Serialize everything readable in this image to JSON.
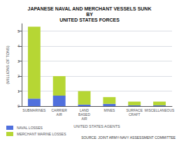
{
  "chart_data": {
    "type": "bar",
    "title": "JAPANESE NAVAL AND MERCHANT VESSELS SUNK\nBY\nUNITED STATES FORCES",
    "xlabel": "UNITED STATES AGENTS",
    "ylabel": "(MILLIONS OF TONS)",
    "categories": [
      "SUBMARINES",
      "CARRIER AIR",
      "LAND BASED AIR",
      "MINES",
      "SURFACE CRAFT",
      "MISCELLANEOUS"
    ],
    "series": [
      {
        "name": "NAVAL LOSSES",
        "values": [
          0.5,
          0.7,
          0.1,
          0.15,
          0.05,
          0.05
        ]
      },
      {
        "name": "MERCHANT MARINE LOSSES",
        "values": [
          4.8,
          1.3,
          0.9,
          0.45,
          0.25,
          0.25
        ]
      }
    ],
    "stacked": true,
    "ylim": [
      0,
      5.5
    ],
    "yticks": [
      0,
      1,
      2,
      3,
      4,
      5
    ],
    "grid": true,
    "legend": "lower left",
    "annotations": [
      "SOURCE: JOINT ARMY-NAVY ASSESSMENT COMMITTEE"
    ]
  }
}
